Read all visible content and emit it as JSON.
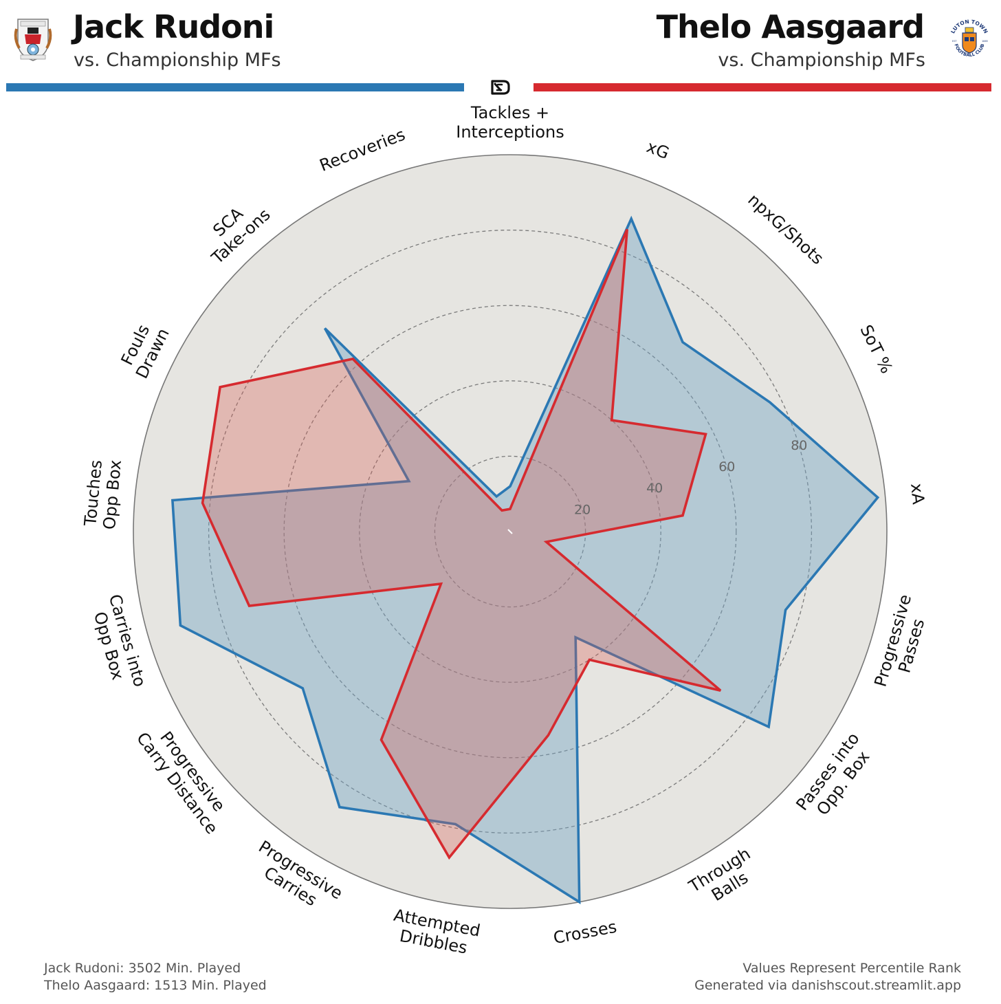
{
  "header": {
    "player_left": "Jack Rudoni",
    "player_left_sub": "vs. Championship MFs",
    "player_right": "Thelo Aasgaard",
    "player_right_sub": "vs. Championship MFs",
    "left_color": "#2b78b3",
    "right_color": "#d62a2f",
    "crest_right_text": {
      "top": "LUTON TOWN",
      "bottom": "FOOTBALL CLUB",
      "est": "EST",
      "year": "1885"
    }
  },
  "footer": {
    "left_line1": "Jack Rudoni: 3502 Min. Played",
    "left_line2": "Thelo Aasgaard: 1513 Min. Played",
    "right_line1": "Values Represent Percentile Rank",
    "right_line2": "Generated via danishscout.streamlit.app"
  },
  "chart_data": {
    "type": "radar",
    "categories": [
      "Tackles + Interceptions",
      "xG",
      "npxG/Shots",
      "SoT %",
      "xA",
      "Progressive Passes",
      "Passes into Opp. Box",
      "Through Balls",
      "Crosses",
      "Attempted Dribbles",
      "Progressive Carries",
      "Progressive Carry Distance",
      "Carries into Opp Box",
      "Touches Opp Box",
      "Fouls Drawn",
      "SCA Take-ons",
      "Recoveries"
    ],
    "category_lines": [
      [
        "Tackles +",
        "Interceptions"
      ],
      [
        "xG"
      ],
      [
        "npxG/Shots"
      ],
      [
        "SoT %"
      ],
      [
        "xA"
      ],
      [
        "Progressive",
        "Passes"
      ],
      [
        "Passes into",
        "Opp. Box"
      ],
      [
        "Through",
        "Balls"
      ],
      [
        "Crosses"
      ],
      [
        "Attempted",
        "Dribbles"
      ],
      [
        "Progressive",
        "Carries"
      ],
      [
        "Progressive",
        "Carry Distance"
      ],
      [
        "Carries into",
        "Opp Box"
      ],
      [
        "Touches",
        "Opp Box"
      ],
      [
        "Fouls",
        "Drawn"
      ],
      [
        "SCA",
        "Take-ons"
      ],
      [
        "Recoveries"
      ]
    ],
    "series": [
      {
        "name": "Jack Rudoni",
        "color": "#2b78b3",
        "fill": "rgba(111,162,196,0.42)",
        "values": [
          12,
          89,
          68,
          77,
          98,
          76,
          86,
          33,
          100,
          79,
          86,
          69,
          91,
          90,
          30,
          73,
          10
        ]
      },
      {
        "name": "Thelo Aasgaard",
        "color": "#d62a2f",
        "fill": "rgba(214,90,80,0.32)",
        "values": [
          6,
          86,
          40,
          58,
          46,
          10,
          70,
          40,
          55,
          88,
          65,
          23,
          72,
          82,
          86,
          62,
          6
        ]
      }
    ],
    "rlim": [
      0,
      100
    ],
    "ring_ticks": [
      20,
      40,
      60,
      80
    ],
    "ring_tick_labels": [
      "20",
      "40",
      "60",
      "80"
    ],
    "grid": true,
    "background_color": "#e6e5e1"
  }
}
